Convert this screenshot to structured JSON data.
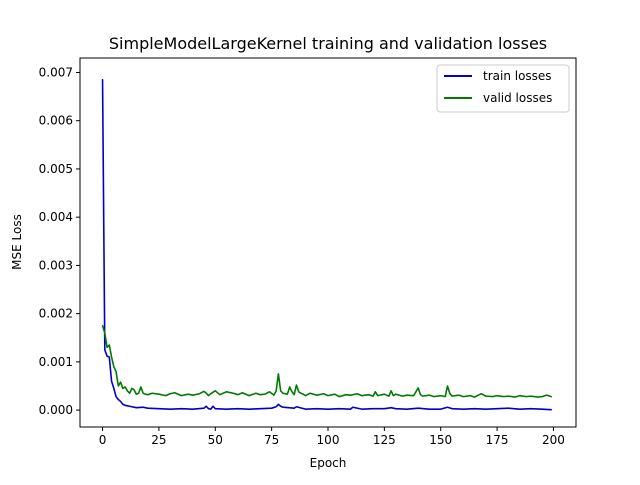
{
  "chart_data": {
    "type": "line",
    "title": "SimpleModelLargeKernel training and validation losses",
    "xlabel": "Epoch",
    "ylabel": "MSE Loss",
    "xlim": [
      -10,
      210
    ],
    "ylim": [
      -0.00035,
      0.0073
    ],
    "xticks": [
      0,
      25,
      50,
      75,
      100,
      125,
      150,
      175,
      200
    ],
    "xtick_labels": [
      "0",
      "25",
      "50",
      "75",
      "100",
      "125",
      "150",
      "175",
      "200"
    ],
    "yticks": [
      0.0,
      0.001,
      0.002,
      0.003,
      0.004,
      0.005,
      0.006,
      0.007
    ],
    "ytick_labels": [
      "0.000",
      "0.001",
      "0.002",
      "0.003",
      "0.004",
      "0.005",
      "0.006",
      "0.007"
    ],
    "grid": false,
    "legend_position": "top-right",
    "series": [
      {
        "name": "train losses",
        "color": "#0000cc",
        "x": [
          0,
          1,
          2,
          3,
          4,
          5,
          6,
          7,
          8,
          9,
          10,
          12,
          15,
          18,
          20,
          25,
          30,
          35,
          40,
          45,
          46,
          47,
          48,
          49,
          50,
          55,
          60,
          65,
          70,
          75,
          77,
          78,
          79,
          80,
          85,
          86,
          90,
          95,
          100,
          105,
          110,
          111,
          115,
          120,
          125,
          128,
          130,
          135,
          140,
          145,
          150,
          153,
          155,
          160,
          165,
          170,
          175,
          180,
          185,
          190,
          195,
          199
        ],
        "y": [
          0.00685,
          0.00125,
          0.00112,
          0.0011,
          0.0006,
          0.00045,
          0.00028,
          0.00022,
          0.00018,
          0.00012,
          0.0001,
          8e-05,
          5e-05,
          6e-05,
          4e-05,
          3e-05,
          2e-05,
          3e-05,
          2e-05,
          4e-05,
          8e-05,
          3e-05,
          2e-05,
          8e-05,
          3e-05,
          2e-05,
          3e-05,
          2e-05,
          3e-05,
          4e-05,
          7e-05,
          0.00012,
          8e-05,
          6e-05,
          4e-05,
          7e-05,
          2e-05,
          3e-05,
          2e-05,
          3e-05,
          2e-05,
          6e-05,
          2e-05,
          3e-05,
          3e-05,
          5e-05,
          3e-05,
          2e-05,
          4e-05,
          2e-05,
          2e-05,
          6e-05,
          3e-05,
          2e-05,
          3e-05,
          2e-05,
          3e-05,
          4e-05,
          2e-05,
          3e-05,
          2e-05,
          1e-05
        ]
      },
      {
        "name": "valid losses",
        "color": "#007a00",
        "x": [
          0,
          1,
          2,
          3,
          4,
          5,
          6,
          7,
          8,
          9,
          10,
          11,
          12,
          13,
          14,
          15,
          16,
          17,
          18,
          19,
          20,
          22,
          25,
          28,
          30,
          32,
          35,
          38,
          40,
          43,
          45,
          46,
          47,
          48,
          50,
          52,
          55,
          58,
          60,
          62,
          65,
          68,
          70,
          72,
          74,
          76,
          77,
          78,
          79,
          80,
          82,
          83,
          84,
          85,
          86,
          87,
          88,
          89,
          90,
          92,
          95,
          98,
          100,
          103,
          105,
          108,
          110,
          113,
          115,
          118,
          120,
          121,
          122,
          125,
          127,
          128,
          129,
          130,
          133,
          135,
          138,
          140,
          141,
          142,
          145,
          147,
          150,
          152,
          153,
          154,
          155,
          158,
          160,
          163,
          165,
          168,
          170,
          173,
          175,
          178,
          180,
          183,
          185,
          188,
          190,
          193,
          195,
          197,
          199
        ],
        "y": [
          0.00175,
          0.0016,
          0.0013,
          0.00135,
          0.0011,
          0.0009,
          0.0008,
          0.0005,
          0.00058,
          0.00045,
          0.00048,
          0.0004,
          0.00035,
          0.00045,
          0.00042,
          0.00033,
          0.00035,
          0.00048,
          0.00035,
          0.00033,
          0.00032,
          0.00035,
          0.00033,
          0.0003,
          0.00034,
          0.00036,
          0.0003,
          0.00033,
          0.00031,
          0.00034,
          0.00039,
          0.00035,
          0.0003,
          0.00034,
          0.0004,
          0.00032,
          0.00038,
          0.00035,
          0.00032,
          0.00036,
          0.0003,
          0.00035,
          0.00032,
          0.00033,
          0.00038,
          0.00031,
          0.0004,
          0.00075,
          0.0004,
          0.00035,
          0.00033,
          0.00048,
          0.00038,
          0.00032,
          0.00052,
          0.00038,
          0.00035,
          0.00033,
          0.0003,
          0.00035,
          0.00031,
          0.00034,
          0.0003,
          0.00033,
          0.00028,
          0.00032,
          0.00031,
          0.00034,
          0.0003,
          0.00032,
          0.00029,
          0.00038,
          0.0003,
          0.00033,
          0.00029,
          0.0004,
          0.0003,
          0.00033,
          0.00029,
          0.00031,
          0.0003,
          0.00046,
          0.00032,
          0.00029,
          0.00031,
          0.00028,
          0.0003,
          0.00028,
          0.0005,
          0.00035,
          0.00029,
          0.00031,
          0.00028,
          0.0003,
          0.00027,
          0.00034,
          0.00029,
          0.00028,
          0.0003,
          0.00028,
          0.00029,
          0.00027,
          0.0003,
          0.00028,
          0.00029,
          0.00027,
          0.00028,
          0.00031,
          0.00028
        ]
      }
    ]
  }
}
